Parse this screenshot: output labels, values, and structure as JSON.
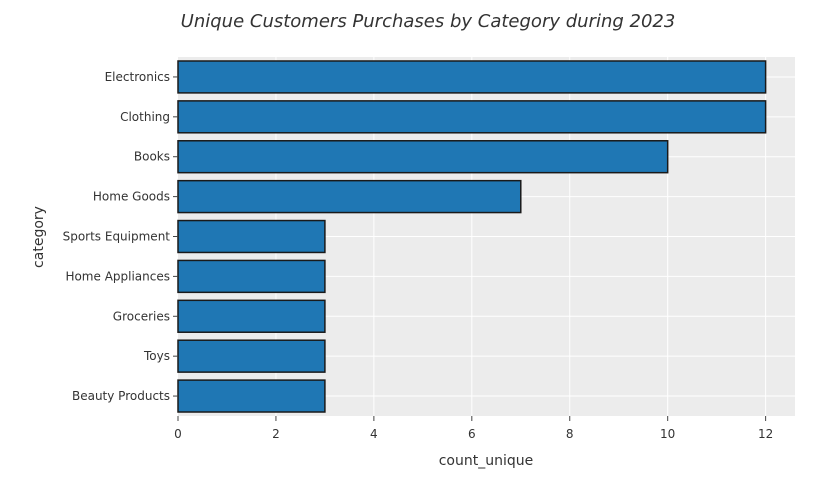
{
  "chart_data": {
    "type": "bar",
    "orientation": "horizontal",
    "title": "Unique Customers Purchases by Category during 2023",
    "xlabel": "count_unique",
    "ylabel": "category",
    "categories": [
      "Electronics",
      "Clothing",
      "Books",
      "Home Goods",
      "Sports Equipment",
      "Home Appliances",
      "Groceries",
      "Toys",
      "Beauty Products"
    ],
    "values": [
      12,
      12,
      10,
      7,
      3,
      3,
      3,
      3,
      3
    ],
    "xlim": [
      0,
      12.6
    ],
    "xticks": [
      0,
      2,
      4,
      6,
      8,
      10,
      12
    ],
    "grid": true,
    "colors": {
      "bar": "#1f77b4",
      "bar_edge": "#1a1a1a",
      "plot_bg": "#ececec",
      "grid": "#ffffff",
      "text": "#333333"
    }
  }
}
